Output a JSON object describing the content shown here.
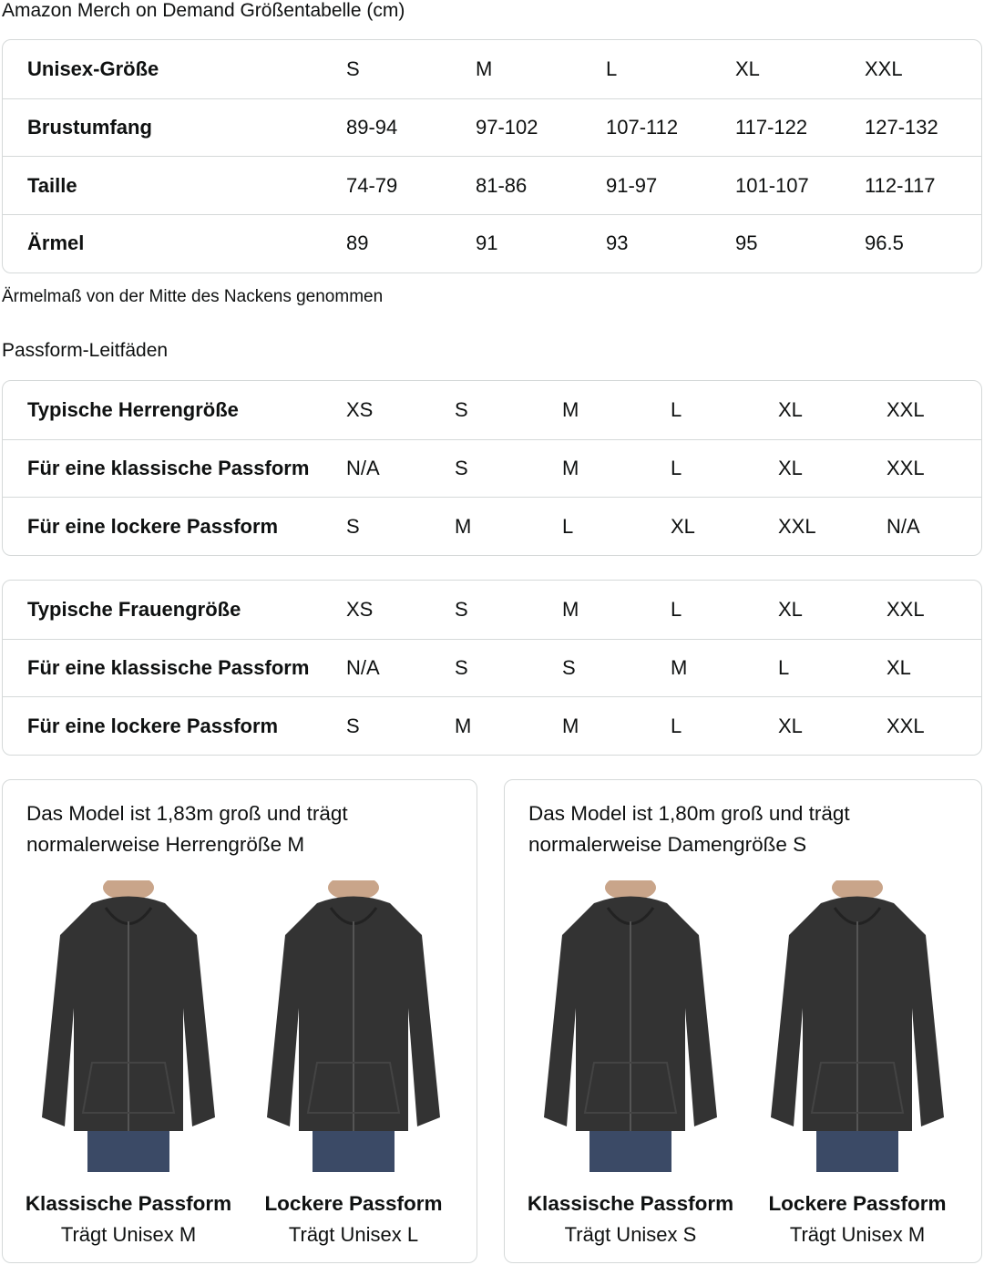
{
  "title": "Amazon Merch on Demand Größentabelle (cm)",
  "size_table": {
    "rows": [
      {
        "label": "Unisex-Größe",
        "values": [
          "S",
          "M",
          "L",
          "XL",
          "XXL"
        ]
      },
      {
        "label": "Brustumfang",
        "values": [
          "89-94",
          "97-102",
          "107-112",
          "117-122",
          "127-132"
        ]
      },
      {
        "label": "Taille",
        "values": [
          "74-79",
          "81-86",
          "91-97",
          "101-107",
          "112-117"
        ]
      },
      {
        "label": "Ärmel",
        "values": [
          "89",
          "91",
          "93",
          "95",
          "96.5"
        ]
      }
    ]
  },
  "note": "Ärmelmaß von der Mitte des Nackens genommen",
  "fit_heading": "Passform-Leitfäden",
  "men_table": {
    "rows": [
      {
        "label": "Typische Herrengröße",
        "values": [
          "XS",
          "S",
          "M",
          "L",
          "XL",
          "XXL"
        ]
      },
      {
        "label": "Für eine klassische Passform",
        "values": [
          "N/A",
          "S",
          "M",
          "L",
          "XL",
          "XXL"
        ]
      },
      {
        "label": "Für eine lockere Passform",
        "values": [
          "S",
          "M",
          "L",
          "XL",
          "XXL",
          "N/A"
        ]
      }
    ]
  },
  "women_table": {
    "rows": [
      {
        "label": "Typische Frauengröße",
        "values": [
          "XS",
          "S",
          "M",
          "L",
          "XL",
          "XXL"
        ]
      },
      {
        "label": "Für eine klassische Passform",
        "values": [
          "N/A",
          "S",
          "S",
          "M",
          "L",
          "XL"
        ]
      },
      {
        "label": "Für eine lockere Passform",
        "values": [
          "S",
          "M",
          "M",
          "L",
          "XL",
          "XXL"
        ]
      }
    ]
  },
  "cards": [
    {
      "caption": "Das Model ist 1,83m groß und trägt normalerweise Herrengröße M",
      "figures": [
        {
          "title": "Klassische Passform",
          "subtitle": "Trägt Unisex M"
        },
        {
          "title": "Lockere Passform",
          "subtitle": "Trägt Unisex L"
        }
      ]
    },
    {
      "caption": "Das Model ist 1,80m groß und trägt normalerweise Damengröße S",
      "figures": [
        {
          "title": "Klassische Passform",
          "subtitle": "Trägt Unisex S"
        },
        {
          "title": "Lockere Passform",
          "subtitle": "Trägt Unisex M"
        }
      ]
    }
  ],
  "colors": {
    "border": "#d5d9d9",
    "hoodie": "#333333",
    "jeans": "#3b4a66"
  }
}
